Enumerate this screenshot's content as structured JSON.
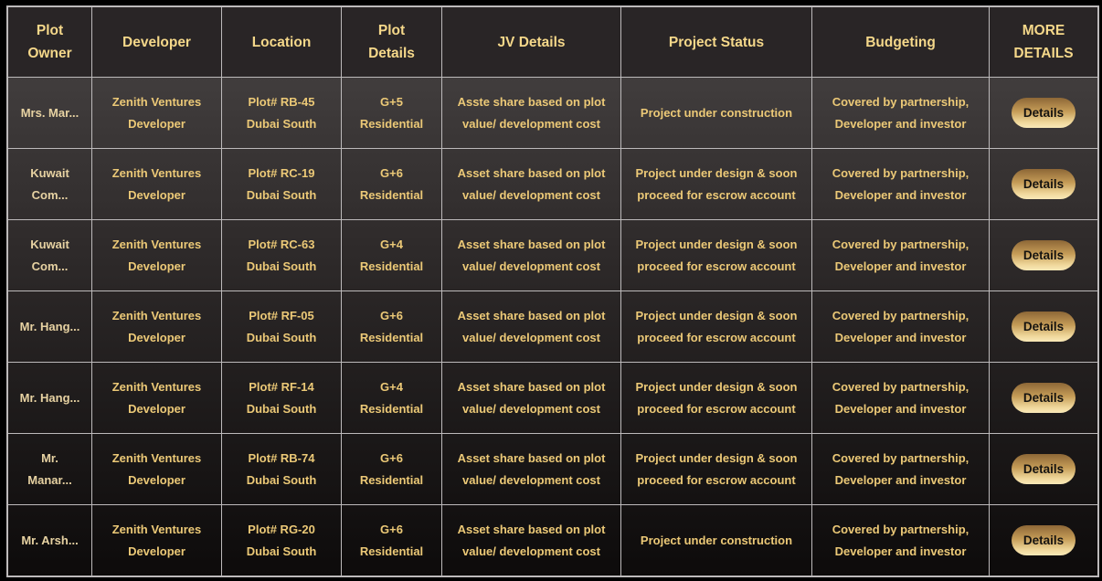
{
  "colors": {
    "page_bg": "#000000",
    "header_bg": "#292526",
    "row_gradient_top": "#413d3d",
    "row_gradient_bottom": "#0d0b0b",
    "border": "#bdbabb",
    "header_text_gold": "#f5d88a",
    "body_text_gold": "#ecc977",
    "owner_text_tan": "#e7d2a2",
    "button_gradient_top": "#8d6737",
    "button_gradient_bottom": "#f9e9b8",
    "button_text": "#151310"
  },
  "table": {
    "headers": [
      {
        "id": "plot-owner",
        "lines": [
          "Plot",
          "Owner"
        ]
      },
      {
        "id": "developer",
        "lines": [
          "Developer"
        ]
      },
      {
        "id": "location",
        "lines": [
          "Location"
        ]
      },
      {
        "id": "plot-details",
        "lines": [
          "Plot",
          "Details"
        ]
      },
      {
        "id": "jv-details",
        "lines": [
          "JV Details"
        ]
      },
      {
        "id": "project-status",
        "lines": [
          "Project Status"
        ]
      },
      {
        "id": "budgeting",
        "lines": [
          "Budgeting"
        ]
      },
      {
        "id": "more-details",
        "lines": [
          "MORE",
          "DETAILS"
        ]
      }
    ],
    "rows": [
      {
        "owner": [
          "Mrs. Mar..."
        ],
        "developer": [
          "Zenith Ventures",
          "Developer"
        ],
        "location": [
          "Plot# RB-45",
          "Dubai South"
        ],
        "plot": [
          "G+5",
          "Residential"
        ],
        "jv": [
          "Asste share based on plot",
          "value/ development cost"
        ],
        "status": [
          "Project under construction"
        ],
        "budgeting": [
          "Covered by partnership,",
          "Developer and investor"
        ],
        "details_label": "Details"
      },
      {
        "owner": [
          "Kuwait",
          "Com..."
        ],
        "developer": [
          "Zenith Ventures",
          "Developer"
        ],
        "location": [
          "Plot# RC-19",
          "Dubai South"
        ],
        "plot": [
          "G+6",
          "Residential"
        ],
        "jv": [
          "Asset share based on plot",
          "value/ development cost"
        ],
        "status": [
          "Project under design & soon",
          "proceed for escrow account"
        ],
        "budgeting": [
          "Covered by partnership,",
          "Developer and investor"
        ],
        "details_label": "Details"
      },
      {
        "owner": [
          "Kuwait",
          "Com..."
        ],
        "developer": [
          "Zenith Ventures",
          "Developer"
        ],
        "location": [
          "Plot# RC-63",
          "Dubai South"
        ],
        "plot": [
          "G+4",
          "Residential"
        ],
        "jv": [
          "Asset share based on plot",
          "value/ development cost"
        ],
        "status": [
          "Project under design & soon",
          "proceed for escrow account"
        ],
        "budgeting": [
          "Covered by partnership,",
          "Developer and investor"
        ],
        "details_label": "Details"
      },
      {
        "owner": [
          "Mr. Hang..."
        ],
        "developer": [
          "Zenith Ventures",
          "Developer"
        ],
        "location": [
          "Plot# RF-05",
          "Dubai South"
        ],
        "plot": [
          "G+6",
          "Residential"
        ],
        "jv": [
          "Asset share based on plot",
          "value/ development cost"
        ],
        "status": [
          "Project under design & soon",
          "proceed for escrow account"
        ],
        "budgeting": [
          "Covered by partnership,",
          "Developer and investor"
        ],
        "details_label": "Details"
      },
      {
        "owner": [
          "Mr. Hang..."
        ],
        "developer": [
          "Zenith Ventures",
          "Developer"
        ],
        "location": [
          "Plot# RF-14",
          "Dubai South"
        ],
        "plot": [
          "G+4",
          "Residential"
        ],
        "jv": [
          "Asset share based on plot",
          "value/ development cost"
        ],
        "status": [
          "Project under design & soon",
          "proceed for escrow account"
        ],
        "budgeting": [
          "Covered by partnership,",
          "Developer and investor"
        ],
        "details_label": "Details"
      },
      {
        "owner": [
          "Mr.",
          "Manar..."
        ],
        "developer": [
          "Zenith Ventures",
          "Developer"
        ],
        "location": [
          "Plot# RB-74",
          "Dubai South"
        ],
        "plot": [
          "G+6",
          "Residential"
        ],
        "jv": [
          "Asset share based on plot",
          "value/ development cost"
        ],
        "status": [
          "Project under design & soon",
          "proceed for escrow account"
        ],
        "budgeting": [
          "Covered by partnership,",
          "Developer and investor"
        ],
        "details_label": "Details"
      },
      {
        "owner": [
          "Mr. Arsh..."
        ],
        "developer": [
          "Zenith Ventures",
          "Developer"
        ],
        "location": [
          "Plot# RG-20",
          "Dubai South"
        ],
        "plot": [
          "G+6",
          "Residential"
        ],
        "jv": [
          "Asset share based on plot",
          "value/ development cost"
        ],
        "status": [
          "Project under construction"
        ],
        "budgeting": [
          "Covered by partnership,",
          "Developer and investor"
        ],
        "details_label": "Details"
      }
    ]
  }
}
